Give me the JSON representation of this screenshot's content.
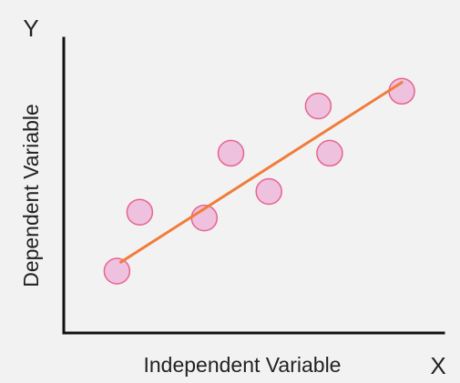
{
  "chart_data": {
    "type": "scatter",
    "title": "",
    "xlabel": "Independent Variable",
    "ylabel": "Dependent Variable",
    "x_axis_letter": "X",
    "y_axis_letter": "Y",
    "xlim": [
      0,
      10
    ],
    "ylim": [
      0,
      10
    ],
    "grid": false,
    "ticks": false,
    "points": [
      {
        "x": 1.4,
        "y": 2.1
      },
      {
        "x": 2.0,
        "y": 4.1
      },
      {
        "x": 3.7,
        "y": 3.9
      },
      {
        "x": 4.4,
        "y": 6.1
      },
      {
        "x": 5.4,
        "y": 4.8
      },
      {
        "x": 6.7,
        "y": 7.7
      },
      {
        "x": 7.0,
        "y": 6.1
      },
      {
        "x": 8.9,
        "y": 8.2
      }
    ],
    "trend_line": {
      "x1": 1.5,
      "y1": 2.4,
      "x2": 8.9,
      "y2": 8.5
    },
    "colors": {
      "point_fill": "#eec1de",
      "point_stroke": "#e8638f",
      "trend_line": "#f07d3b",
      "axis": "#111111",
      "background": "#f2f2f2"
    }
  }
}
